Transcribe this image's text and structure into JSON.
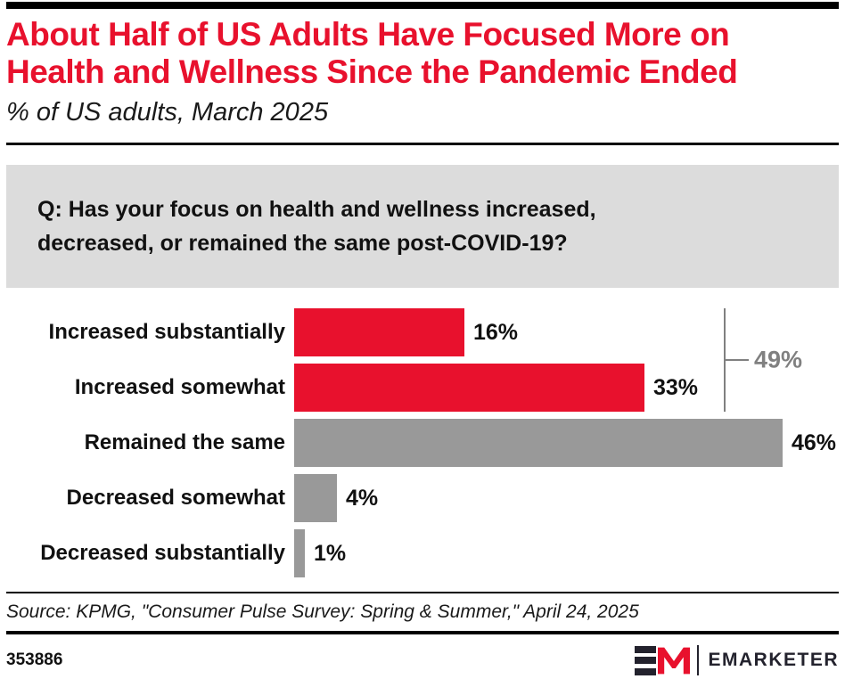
{
  "header": {
    "title": "About Half of US Adults Have Focused More on Health and Wellness Since the Pandemic Ended",
    "title_lines": [
      "About Half of US Adults Have Focused More on",
      "Health and Wellness Since the Pandemic Ended"
    ],
    "subtitle": "% of US adults, March 2025"
  },
  "question": {
    "text": "Q: Has your focus on health and wellness increased, decreased, or remained the same post-COVID-19?",
    "lines": [
      "Q: Has your focus on health and wellness increased,",
      "decreased, or remained the same post-COVID-19?"
    ]
  },
  "chart_data": {
    "type": "bar",
    "orientation": "horizontal",
    "title": "About Half of US Adults Have Focused More on Health and Wellness Since the Pandemic Ended",
    "subtitle": "% of US adults, March 2025",
    "categories": [
      "Increased substantially",
      "Increased somewhat",
      "Remained the same",
      "Decreased somewhat",
      "Decreased substantially"
    ],
    "values": [
      16,
      33,
      46,
      4,
      1
    ],
    "value_labels": [
      "16%",
      "33%",
      "46%",
      "4%",
      "1%"
    ],
    "bar_colors": [
      "#E8112D",
      "#E8112D",
      "#999999",
      "#999999",
      "#999999"
    ],
    "xlim": [
      0,
      46
    ],
    "grid": false,
    "legend": "none",
    "annotation": {
      "label": "49%",
      "value": 49,
      "spans_categories": [
        "Increased substantially",
        "Increased somewhat"
      ],
      "color": "#808080"
    }
  },
  "source": {
    "text": "Source: KPMG, \"Consumer Pulse Survey: Spring & Summer,\" April 24, 2025"
  },
  "footer": {
    "chart_number": "353886",
    "brand_wordmark": "EMARKETER"
  },
  "colors": {
    "accent_red": "#E8112D",
    "bar_gray": "#999999",
    "question_box_bg": "#DCDCDC",
    "bracket_gray": "#808080",
    "rule_black": "#000000",
    "logo_dark": "#23222D"
  }
}
